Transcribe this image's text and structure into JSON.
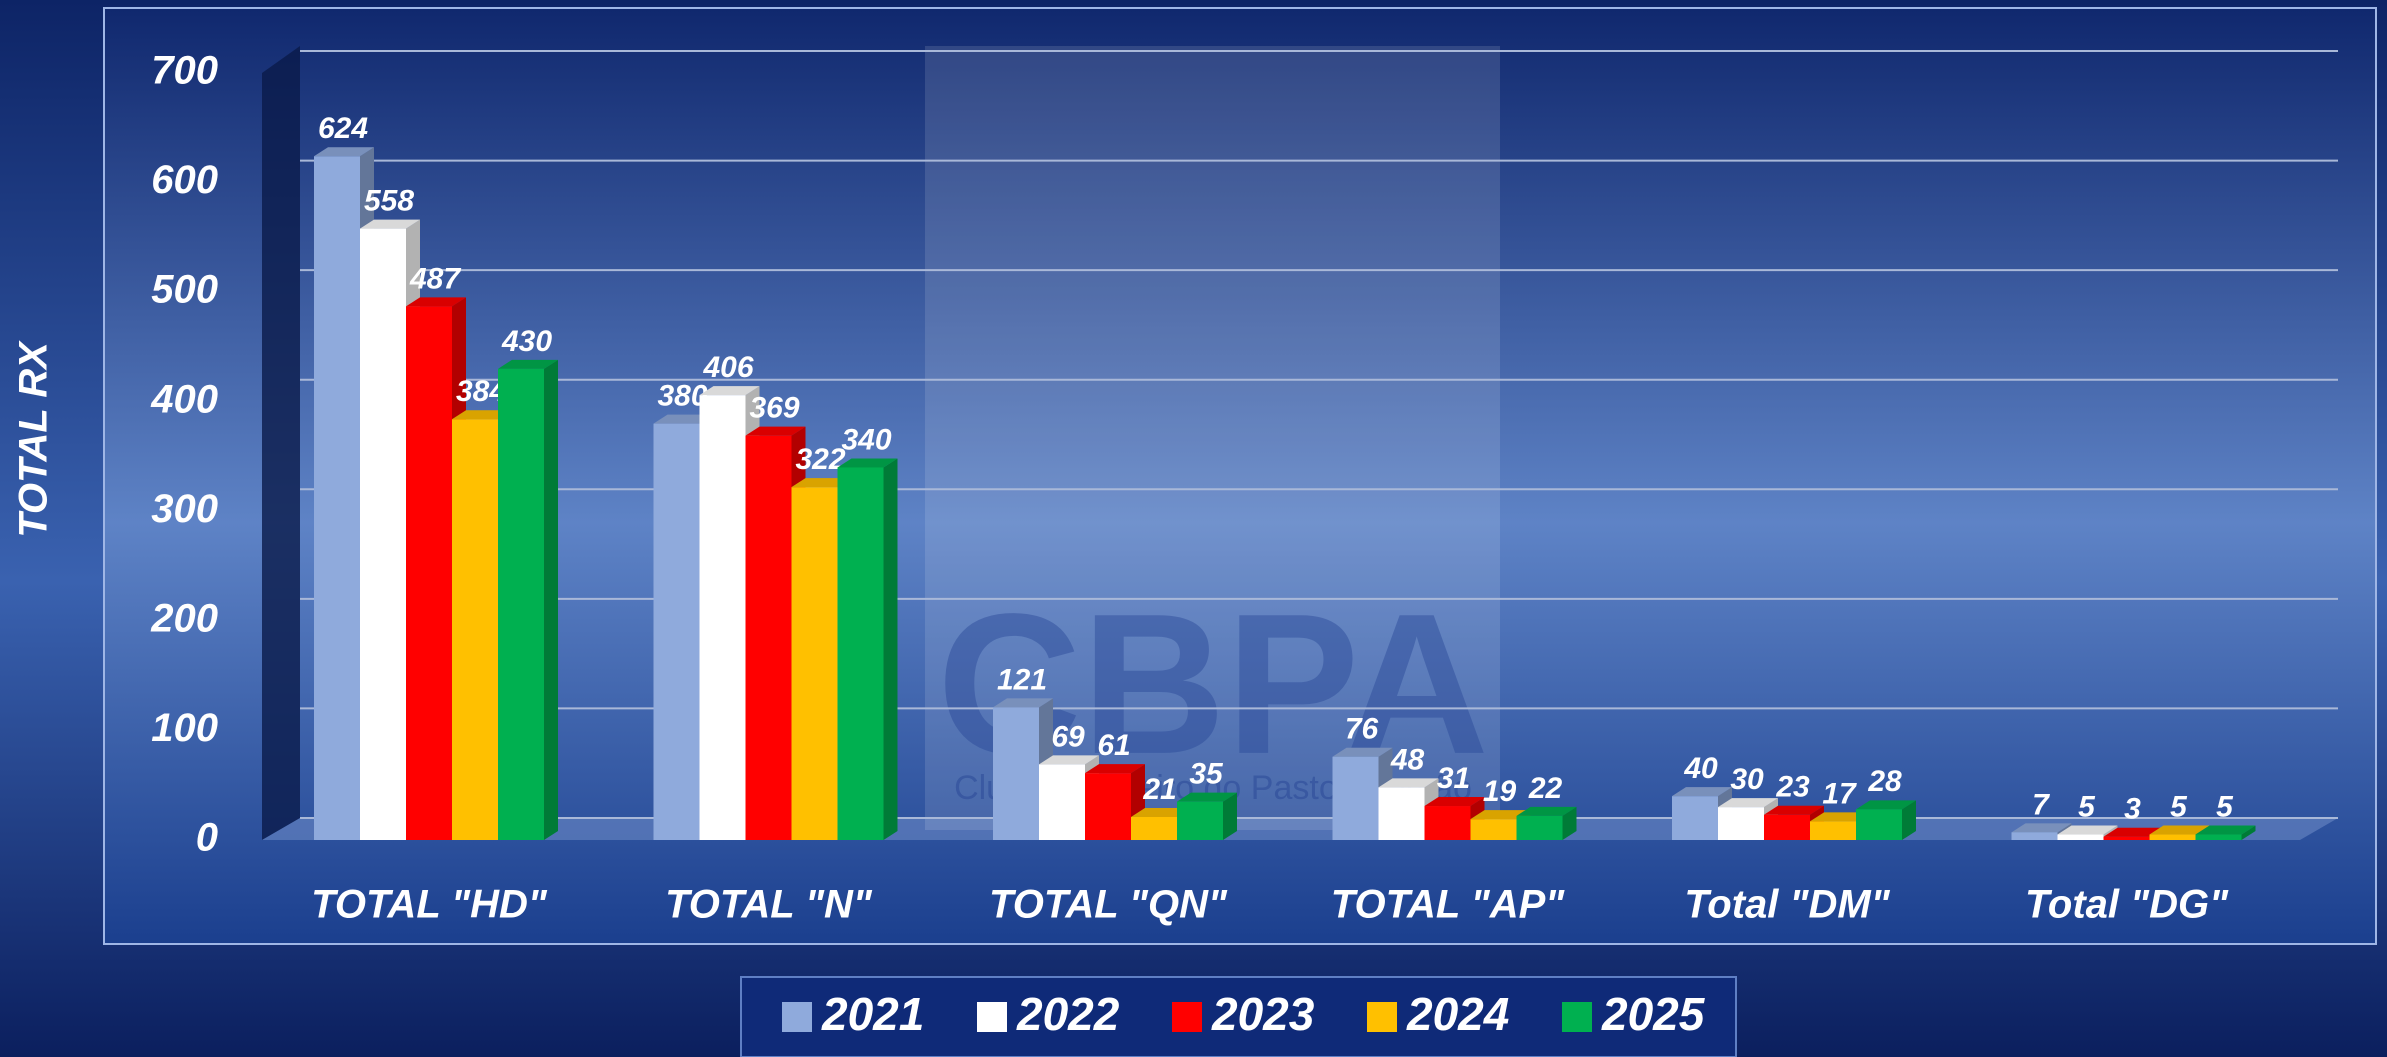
{
  "chart_data": {
    "type": "bar",
    "watermark": "CBPA",
    "watermark_subtitle": "Clube Brasileiro do Pastor Alemão",
    "y_label": "TOTAL  RX",
    "categories": [
      "TOTAL \"HD\"",
      "TOTAL \"N\"",
      "TOTAL \"QN\"",
      "TOTAL \"AP\"",
      "Total \"DM\"",
      "Total \"DG\""
    ],
    "series": [
      {
        "name": "2021",
        "color": "#8faadc",
        "values": [
          624,
          380,
          121,
          76,
          40,
          7
        ]
      },
      {
        "name": "2022",
        "color": "#ffffff",
        "values": [
          558,
          406,
          69,
          48,
          30,
          5
        ]
      },
      {
        "name": "2023",
        "color": "#ff0000",
        "values": [
          487,
          369,
          61,
          31,
          23,
          3
        ]
      },
      {
        "name": "2024",
        "color": "#ffc000",
        "values": [
          384,
          322,
          21,
          19,
          17,
          5
        ]
      },
      {
        "name": "2025",
        "color": "#00b050",
        "values": [
          430,
          340,
          35,
          22,
          28,
          5
        ]
      }
    ],
    "ylim": [
      0,
      700
    ],
    "yticks": [
      0,
      100,
      200,
      300,
      400,
      500,
      600,
      700
    ],
    "grid": true,
    "legend": "bottom"
  }
}
